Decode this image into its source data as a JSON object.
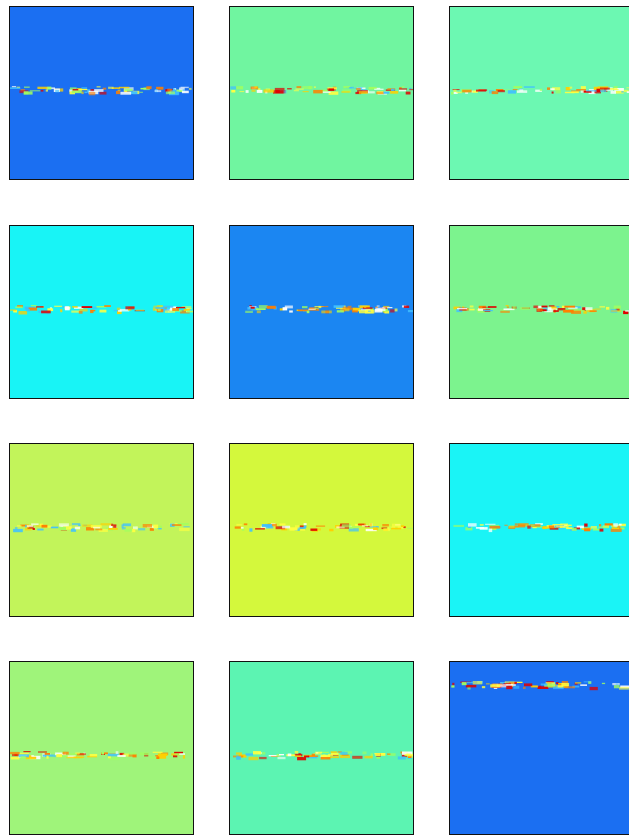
{
  "panels": [
    {
      "color": "#1b6ff2"
    },
    {
      "color": "#70f5a0"
    },
    {
      "color": "#6cf8b2"
    },
    {
      "color": "#18f4f6"
    },
    {
      "color": "#1b86f2"
    },
    {
      "color": "#7cf38e"
    },
    {
      "color": "#c2f45a"
    },
    {
      "color": "#d4f83c"
    },
    {
      "color": "#1af4f6"
    },
    {
      "color": "#9ff47a"
    },
    {
      "color": "#5cf4b2"
    },
    {
      "color": "#1b6ff2"
    }
  ]
}
